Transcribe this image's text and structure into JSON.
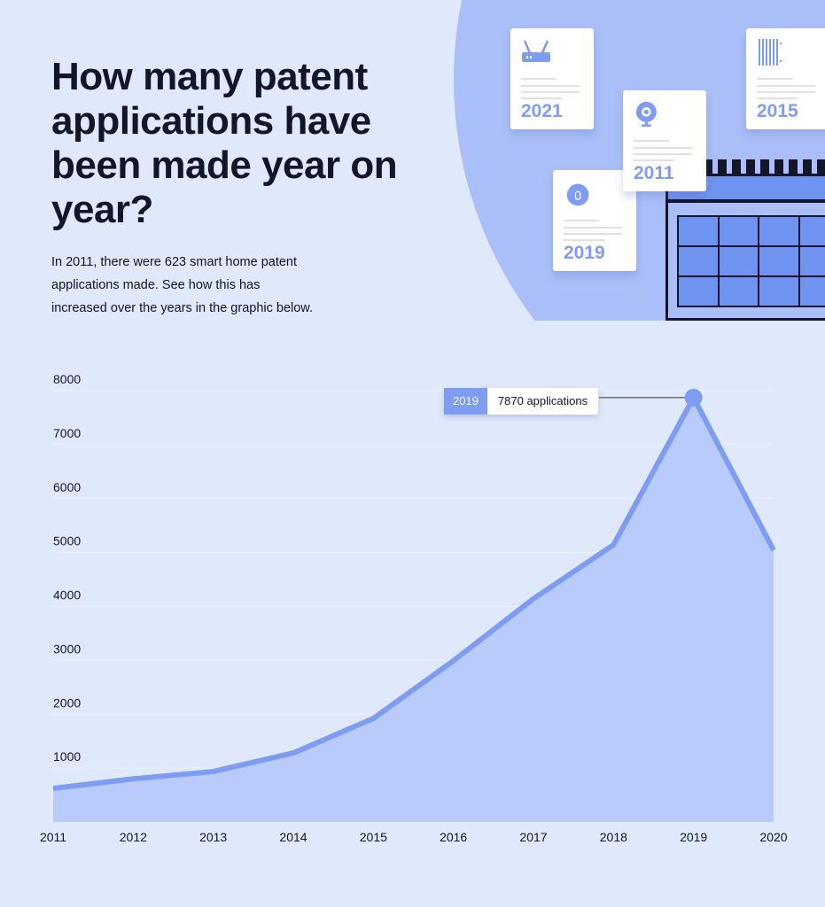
{
  "header": {
    "title": "How many patent applications have been made year on year?",
    "intro": "In 2011, there were 623 smart home patent applications made. See how this has increased over the years in the graphic below."
  },
  "illustration": {
    "cards": [
      {
        "year": "2021",
        "icon": "router-icon"
      },
      {
        "year": "2011",
        "icon": "webcam-icon"
      },
      {
        "year": "2015",
        "icon": "radiator-icon"
      },
      {
        "year": "2019",
        "icon": "robot-vacuum-icon"
      }
    ]
  },
  "colors": {
    "line": "#7e9cf2",
    "fill": "#b9cbfa",
    "background": "#e0e8fb"
  },
  "chart_data": {
    "type": "area",
    "title": "",
    "xlabel": "",
    "ylabel": "",
    "x": [
      "2011",
      "2012",
      "2013",
      "2014",
      "2015",
      "2016",
      "2017",
      "2018",
      "2019",
      "2020"
    ],
    "series": [
      {
        "name": "Patent applications",
        "values": [
          623,
          800,
          935,
          1280,
          1920,
          2990,
          4140,
          5140,
          7870,
          5040
        ]
      }
    ],
    "ylim": [
      0,
      8000
    ],
    "yticks": [
      "1000",
      "2000",
      "3000",
      "4000",
      "5000",
      "6000",
      "7000",
      "8000"
    ],
    "grid": true,
    "annotation": {
      "year": "2019",
      "text": "7870 applications"
    }
  }
}
